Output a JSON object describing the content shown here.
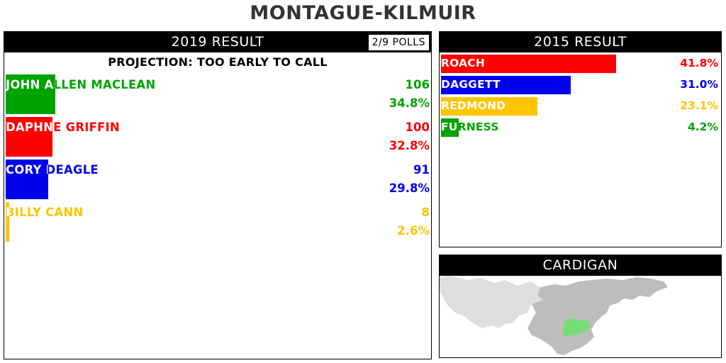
{
  "riding_name": "MONTAGUE-KILMUIR",
  "current": {
    "header": "2019 RESULT",
    "polls": "2/9 POLLS",
    "projection": "PROJECTION: TOO EARLY TO CALL",
    "candidates": [
      {
        "name": "JOHN ALLEN MACLEAN",
        "votes": "106",
        "pct": "34.8%",
        "share": 34.8,
        "color": "#00a300"
      },
      {
        "name": "DAPHNE GRIFFIN",
        "votes": "100",
        "pct": "32.8%",
        "share": 32.8,
        "color": "#ff0000"
      },
      {
        "name": "CORY DEAGLE",
        "votes": "91",
        "pct": "29.8%",
        "share": 29.8,
        "color": "#0000ee"
      },
      {
        "name": "BILLY CANN",
        "votes": "8",
        "pct": "2.6%",
        "share": 2.6,
        "color": "#ffc400"
      }
    ]
  },
  "previous": {
    "header": "2015 RESULT",
    "parties": [
      {
        "name": "ROACH",
        "pct": "41.8%",
        "share": 41.8,
        "color": "#ff0000"
      },
      {
        "name": "DAGGETT",
        "pct": "31.0%",
        "share": 31.0,
        "color": "#0000ee"
      },
      {
        "name": "REDMOND",
        "pct": "23.1%",
        "share": 23.1,
        "color": "#ffc400"
      },
      {
        "name": "FURNESS",
        "pct": "4.2%",
        "share": 4.2,
        "color": "#00a300"
      }
    ]
  },
  "map": {
    "header": "CARDIGAN",
    "highlight_color": "#77dd77",
    "region_color": "#bdbdbd",
    "land_color": "#dedede"
  }
}
